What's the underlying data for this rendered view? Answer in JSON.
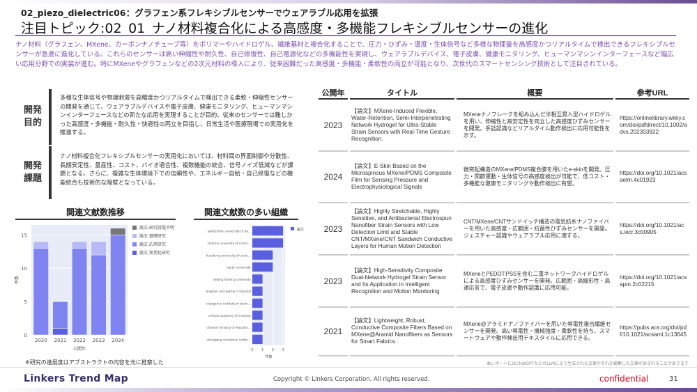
{
  "header": {
    "subtitle": "02_piezo_dielectric06：グラフェン系フレキシブルセンサーでウェアラブル応用を拡張",
    "title": "注目トピック:02_01_ナノ材料複合化による高感度・多機能フレキシブルセンサーの進化"
  },
  "summary": "ナノ材料（グラフェン、MXene、カーボンナノチューブ等）をポリマーやハイドロゲル、繊維基材と複合化することで、圧力・ひずみ・温度・生体信号など多様な物理量を高感度かつリアルタイムで検出できるフレキシブルセンサーが急速に進化している。これらのセンサーは高い伸縮性や耐久性、自己修復性、自己電源化などの多機能性を実現し、ウェアラブルデバイス、電子皮膚、健康モニタリング、ヒューマンマシンインターフェースなど幅広い応用分野での実装が進む。特にMXeneやグラフェンなどの2次元材料の導入により、従来困難だった高感度・多機能・柔軟性の両立が可能となり、次世代のスマートセンシング技術として注目されている。",
  "purpose": {
    "label": "開発目的",
    "text": "多様な生体信号や物理刺激を高精度かつリアルタイムで検出できる柔軟・伸縮性センサーの開発を通じて、ウェアラブルデバイスや電子皮膚、健康モニタリング、ヒューマンマシンインターフェースなどの新たな応用を実現することが目的。従来のセンサーでは難しかった高感度・多機能・耐久性・快適性の両立を目指し、日常生活や医療現場での実用化を推進する。"
  },
  "challenge": {
    "label": "開発課題",
    "text": "ナノ材料複合化フレキシブルセンサーの実用化においては、材料間の界面制御や分散性、長期安定性、量産性、コスト、バイオ適合性、複数機能の統合、信号ノイズ低減などが課題となる。さらに、複雑な生体環境下での信頼性や、エネルギー自給・自己修復などの機能統合も技術的な障壁となっている。"
  },
  "chart_data": [
    {
      "type": "bar",
      "stacked": true,
      "title": "関連文献数推移",
      "xlabel": "公開年",
      "ylabel": "件数",
      "categories": [
        "2020",
        "2021",
        "2022",
        "2023",
        "2024"
      ],
      "ylim": [
        0,
        16.5
      ],
      "yticks": [
        0,
        5,
        10,
        15
      ],
      "legend_position": "top-right",
      "series": [
        {
          "name": "論文:実用化研究",
          "values": [
            0,
            1,
            0,
            0,
            0
          ],
          "color": "#5a5fe0"
        },
        {
          "name": "論文:応用研究",
          "values": [
            13,
            4,
            13,
            12,
            15
          ],
          "color": "#7f84f0"
        },
        {
          "name": "論文:基礎研究",
          "values": [
            1,
            0,
            1,
            2,
            0
          ],
          "color": "#b7baf7"
        },
        {
          "name": "論文:研究段階不明",
          "values": [
            0,
            0,
            0,
            0,
            1
          ],
          "color": "#777777"
        }
      ]
    },
    {
      "type": "bar",
      "orientation": "horizontal",
      "title": "関連文献数の多い組織",
      "xlabel": "件数",
      "xlim": [
        0,
        3.2
      ],
      "xticks": [
        0,
        1,
        2,
        3
      ],
      "legend_position": "top-right",
      "categories": [
        "polytechnic university of bari",
        "shaanxi university of science and technology",
        "huazhong university of science and technology",
        "tianjin university",
        "beijing forestry university",
        "brigham and women's hospital",
        "changchun institute of technology",
        "chinese academy of sciences",
        "chinese ministry of education",
        "chongqing vocational institute of engineering"
      ],
      "series": [
        {
          "name": "論文",
          "values": [
            3,
            3,
            2,
            2,
            1,
            1,
            1,
            1,
            1,
            1
          ],
          "color": "#5a5fe0"
        }
      ]
    }
  ],
  "note": "※研究の進展度はアブストラクトの内容を元に推察した",
  "table": {
    "headers": [
      "公開年",
      "タイトル",
      "概要",
      "参考URL"
    ],
    "rows": [
      {
        "year": "2023",
        "title": "【論文】MXene-Induced Flexible, Water-Retention, Semi-Interpenetrating Network Hydrogel for Ultra-Stable Strain Sensors with Real-Time Gesture Recognition.",
        "summary": "MXeneナノフレークを組み込んだ半相互貫入型ハイドロゲルを用い、伸縮性と高安定性を両立した高感度ひずみセンサーを開発。手話認識などリアルタイム動作検出に応用可能性を示す。",
        "url": "https://onlinelibrary.wiley.com/doi/pdfdirect/10.1002/advs.202303922"
      },
      {
        "year": "2024",
        "title": "【論文】E-Skin Based on the Microspinous MXene/PDMS Composite Film for Sensing Pressure and Electrophysiological Signals",
        "summary": "微突起構造のMXene/PDMS複合膜を用いたe-skinを開発。圧力・関節運動・生体信号の高感度検出が可能で、低コスト・多機能な健康モニタリングや動作検出に有望。",
        "url": "https://doi.org/10.1021/acsaelm.4c01923"
      },
      {
        "year": "2023",
        "title": "【論文】Highly Stretchable, Highly Sensitive, and Antibacterial Electrospun Nanofiber Strain Sensors with Low Detection Limit and Stable CNT/MXene/CNT Sandwich Conductive Layers for Human Motion Detection",
        "summary": "CNT/MXene/CNTサンドイッチ構造の電気紡糸ナノファイバーを用いた高感度・広範囲・抗菌性ひずみセンサーを開発。ジェスチャー認識やウェアラブル応用に適する。",
        "url": "https://doi.org/10.1021/acs.iecr.3c00905"
      },
      {
        "year": "2023",
        "title": "【論文】High-Sensitivity Composite Dual-Network Hydrogel Strain Sensor and Its Application in Intelligent Recognition and Motion Monitoring",
        "summary": "MXeneとPEDOT:PSSを含む二重ネットワークハイドロゲルによる高感度ひずみセンサーを開発。広範囲・高線形性・高速応答で、電子皮膚や動作認識に応用可能。",
        "url": "https://doi.org/10.1021/acsapm.2c02215"
      },
      {
        "year": "2021",
        "title": "【論文】Lightweight, Robust, Conductive Composite Fibers Based on MXene@Aramid Nanofibers as Sensors for Smart Fabrics.",
        "summary": "MXene@アラミドナノファイバーを用いた導電性複合繊維センサーを開発。高い導電性・機械強度・柔軟性を持ち、スマートウェアや動作検出用テキスタイルに応用できる。",
        "url": "https://pubs.acs.org/doi/pdf/10.1021/acsami.1c13645"
      }
    ]
  },
  "disclaimer": "本レポートにはChatGPTなどのLLMにより生成された文章やそれを編集した文章が含まれることがあります",
  "footer": {
    "logo": "Linkers Trend Map",
    "copyright": "Copyright © Linkers Corporation. All rights reserved.",
    "confidential": "confidential",
    "page": "31"
  }
}
